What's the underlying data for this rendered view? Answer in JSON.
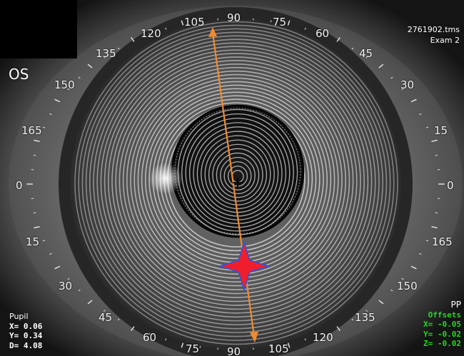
{
  "exam": {
    "file_name": "2761902.tms",
    "exam_label": "Exam 2",
    "eye": "OS"
  },
  "axis_labels": {
    "top": [
      "120",
      "105",
      "90",
      "75",
      "60",
      "45",
      "30",
      "15",
      "0",
      "165",
      "150",
      "135",
      "120",
      "105",
      "90",
      "75",
      "60",
      "45",
      "30",
      "15",
      "0",
      "165",
      "150",
      "135"
    ],
    "scale_note": "labels read clockwise from the upper left; 0 on the left and right, 90 at top and bottom"
  },
  "pupil": {
    "title": "Pupil",
    "x": "X=  0.06",
    "y": "Y=  0.34",
    "d": "D=  4.08"
  },
  "offsets": {
    "pp_label": "PP",
    "title": "Offsets",
    "x": "X= -0.05",
    "y": "Y= -0.02",
    "z": "Z= -0.02"
  },
  "colors": {
    "axis_line": "#f08a30",
    "star_fill": "#f01e2c",
    "star_outline": "#3050e0",
    "offsets_text": "#22d822"
  }
}
